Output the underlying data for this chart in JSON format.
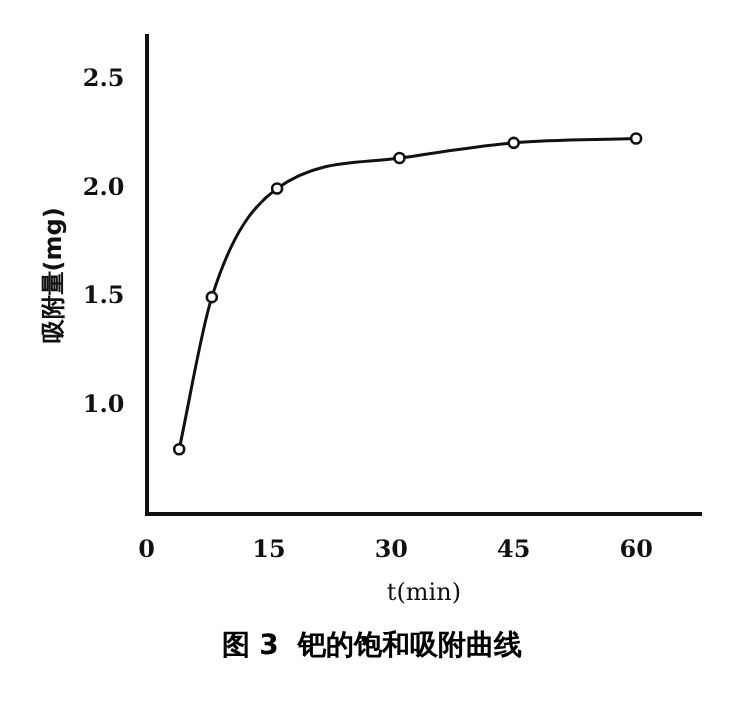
{
  "chart_data": {
    "type": "line",
    "xlabel": "t(min)",
    "ylabel": "吸附量(mg)",
    "x": [
      4,
      8,
      16,
      31,
      45,
      60
    ],
    "series": [
      {
        "color": "#111111",
        "values": [
          0.8,
          1.5,
          2.0,
          2.14,
          2.21,
          2.23
        ]
      }
    ],
    "xlim": [
      0,
      68
    ],
    "xticks": [
      0,
      15,
      30,
      45,
      60
    ],
    "ylim": [
      0.5,
      2.7
    ],
    "yticks": [
      {
        "value": 1,
        "label": "1.0"
      },
      1.5,
      {
        "value": 2,
        "label": "2.0"
      },
      2.5
    ],
    "grid": false,
    "legend": false,
    "marker": "circle",
    "line_style": "solid",
    "annotations": [
      "图 3  钯的饱和吸附曲线"
    ]
  }
}
